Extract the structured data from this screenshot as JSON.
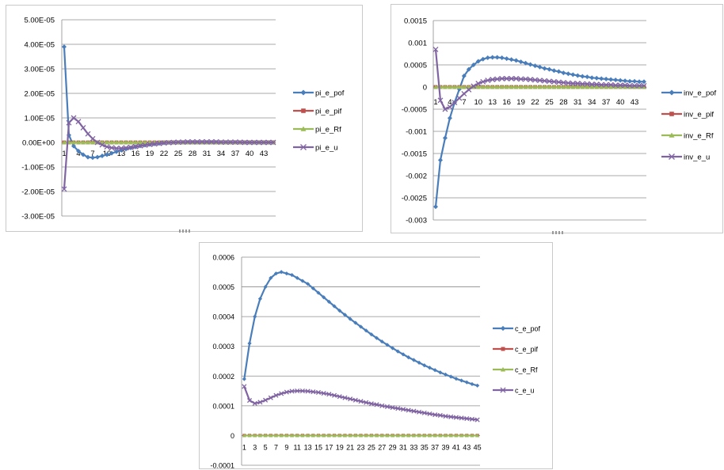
{
  "colors": {
    "pof": "#4a7ebb",
    "pif": "#c0504d",
    "rf": "#9bbb59",
    "u": "#8064a2",
    "grid": "#8c8c8c",
    "border": "#c9c9c9"
  },
  "chart_data": [
    {
      "id": "pi",
      "type": "line",
      "title": "",
      "x": [
        1,
        2,
        3,
        4,
        5,
        6,
        7,
        8,
        9,
        10,
        11,
        12,
        13,
        14,
        15,
        16,
        17,
        18,
        19,
        20,
        21,
        22,
        23,
        24,
        25,
        26,
        27,
        28,
        29,
        30,
        31,
        32,
        33,
        34,
        35,
        36,
        37,
        38,
        39,
        40,
        41,
        42,
        43,
        44,
        45
      ],
      "x_tick_labels": [
        "1",
        "4",
        "7",
        "10",
        "13",
        "16",
        "19",
        "22",
        "25",
        "28",
        "31",
        "34",
        "37",
        "40",
        "43"
      ],
      "y_tick_labels": [
        "5.00E-05",
        "4.00E-05",
        "3.00E-05",
        "2.00E-05",
        "1.00E-05",
        "0.00E+00",
        "-1.00E-05",
        "-2.00E-05",
        "-3.00E-05"
      ],
      "ylim": [
        -3e-05,
        5e-05
      ],
      "legend": [
        "pi_e_pof",
        "pi_e_pif",
        "pi_e_Rf",
        "pi_e_u"
      ],
      "legend_position": "right",
      "series": [
        {
          "name": "pi_e_pof",
          "values": [
            3.9e-05,
            3e-06,
            -1.5e-06,
            -3.5e-06,
            -5e-06,
            -6e-06,
            -6.2e-06,
            -6e-06,
            -5.5e-06,
            -5e-06,
            -4.4e-06,
            -3.8e-06,
            -3.2e-06,
            -2.7e-06,
            -2.2e-06,
            -1.8e-06,
            -1.4e-06,
            -1.1e-06,
            -8e-07,
            -6e-07,
            -4e-07,
            -2e-07,
            -1e-07,
            0,
            0,
            1e-07,
            1e-07,
            1e-07,
            1e-07,
            1e-07,
            1e-07,
            1e-07,
            1e-07,
            1e-07,
            1e-07,
            1e-07,
            1e-07,
            0,
            0,
            0,
            0,
            0,
            0,
            0,
            0
          ]
        },
        {
          "name": "pi_e_pif",
          "values": [
            0,
            0,
            0,
            0,
            0,
            0,
            0,
            0,
            0,
            0,
            0,
            0,
            0,
            0,
            0,
            0,
            0,
            0,
            0,
            0,
            0,
            0,
            0,
            0,
            0,
            0,
            0,
            0,
            0,
            0,
            0,
            0,
            0,
            0,
            0,
            0,
            0,
            0,
            0,
            0,
            0,
            0,
            0,
            0,
            0
          ]
        },
        {
          "name": "pi_e_Rf",
          "values": [
            0,
            0,
            0,
            0,
            0,
            0,
            0,
            0,
            0,
            0,
            0,
            0,
            0,
            0,
            0,
            0,
            0,
            0,
            0,
            0,
            0,
            0,
            0,
            0,
            0,
            0,
            0,
            0,
            0,
            0,
            0,
            0,
            0,
            0,
            0,
            0,
            0,
            0,
            0,
            0,
            0,
            0,
            0,
            0,
            0
          ]
        },
        {
          "name": "pi_e_u",
          "values": [
            -1.9e-05,
            8e-06,
            1e-05,
            8.5e-06,
            6e-06,
            3.5e-06,
            1.5e-06,
            0,
            -1e-06,
            -1.8e-06,
            -2.2e-06,
            -2.4e-06,
            -2.4e-06,
            -2.2e-06,
            -2e-06,
            -1.7e-06,
            -1.4e-06,
            -1.1e-06,
            -8e-07,
            -6e-07,
            -4e-07,
            -2e-07,
            -1e-07,
            0,
            1e-07,
            1e-07,
            2e-07,
            2e-07,
            2e-07,
            2e-07,
            2e-07,
            2e-07,
            2e-07,
            1e-07,
            1e-07,
            1e-07,
            1e-07,
            1e-07,
            0,
            0,
            0,
            0,
            0,
            0,
            0
          ]
        }
      ]
    },
    {
      "id": "inv",
      "type": "line",
      "title": "",
      "x": [
        1,
        2,
        3,
        4,
        5,
        6,
        7,
        8,
        9,
        10,
        11,
        12,
        13,
        14,
        15,
        16,
        17,
        18,
        19,
        20,
        21,
        22,
        23,
        24,
        25,
        26,
        27,
        28,
        29,
        30,
        31,
        32,
        33,
        34,
        35,
        36,
        37,
        38,
        39,
        40,
        41,
        42,
        43,
        44,
        45
      ],
      "x_tick_labels": [
        "1",
        "4",
        "7",
        "10",
        "13",
        "16",
        "19",
        "22",
        "25",
        "28",
        "31",
        "34",
        "37",
        "40",
        "43"
      ],
      "y_tick_labels": [
        "0.0015",
        "0.001",
        "0.0005",
        "0",
        "-0.0005",
        "-0.001",
        "-0.0015",
        "-0.002",
        "-0.0025",
        "-0.003"
      ],
      "ylim": [
        -0.003,
        0.0015
      ],
      "legend": [
        "inv_e_pof",
        "inv_e_pif",
        "inv_e_Rf",
        "inv_e_u"
      ],
      "legend_position": "right",
      "series": [
        {
          "name": "inv_e_pof",
          "values": [
            -0.0027,
            -0.00165,
            -0.00115,
            -0.0007,
            -0.00035,
            -5e-05,
            0.00025,
            0.0004,
            0.0005,
            0.00058,
            0.00063,
            0.00066,
            0.00067,
            0.00067,
            0.00066,
            0.00064,
            0.00062,
            0.0006,
            0.00057,
            0.00054,
            0.00051,
            0.00048,
            0.00045,
            0.00042,
            0.0004,
            0.00037,
            0.00035,
            0.00032,
            0.0003,
            0.00028,
            0.00026,
            0.00024,
            0.00023,
            0.00021,
            0.0002,
            0.00019,
            0.00018,
            0.00017,
            0.00016,
            0.00015,
            0.00014,
            0.00013,
            0.00013,
            0.00012,
            0.00012
          ]
        },
        {
          "name": "inv_e_pif",
          "values": [
            0,
            0,
            0,
            0,
            0,
            0,
            0,
            0,
            0,
            0,
            0,
            0,
            0,
            0,
            0,
            0,
            0,
            0,
            0,
            0,
            0,
            0,
            0,
            0,
            0,
            0,
            0,
            0,
            0,
            0,
            0,
            0,
            0,
            0,
            0,
            0,
            0,
            0,
            0,
            0,
            0,
            0,
            0,
            0,
            0
          ]
        },
        {
          "name": "inv_e_Rf",
          "values": [
            0,
            0,
            0,
            0,
            0,
            0,
            0,
            0,
            0,
            0,
            0,
            0,
            0,
            0,
            0,
            0,
            0,
            0,
            0,
            0,
            0,
            0,
            0,
            0,
            0,
            0,
            0,
            0,
            0,
            0,
            0,
            0,
            0,
            0,
            0,
            0,
            0,
            0,
            0,
            0,
            0,
            0,
            0,
            0,
            0
          ]
        },
        {
          "name": "inv_e_u",
          "values": [
            0.00085,
            -0.0003,
            -0.0005,
            -0.00045,
            -0.00035,
            -0.00025,
            -0.00015,
            -6e-05,
            2e-05,
            8e-05,
            0.00012,
            0.00015,
            0.00017,
            0.00018,
            0.00019,
            0.00019,
            0.00019,
            0.00019,
            0.00018,
            0.00018,
            0.00017,
            0.00016,
            0.00015,
            0.00014,
            0.00013,
            0.00012,
            0.00011,
            0.0001,
            9e-05,
            8e-05,
            8e-05,
            7e-05,
            7e-05,
            6e-05,
            6e-05,
            5e-05,
            5e-05,
            5e-05,
            4e-05,
            4e-05,
            4e-05,
            3e-05,
            3e-05,
            3e-05,
            3e-05
          ]
        }
      ]
    },
    {
      "id": "c",
      "type": "line",
      "title": "",
      "x": [
        1,
        2,
        3,
        4,
        5,
        6,
        7,
        8,
        9,
        10,
        11,
        12,
        13,
        14,
        15,
        16,
        17,
        18,
        19,
        20,
        21,
        22,
        23,
        24,
        25,
        26,
        27,
        28,
        29,
        30,
        31,
        32,
        33,
        34,
        35,
        36,
        37,
        38,
        39,
        40,
        41,
        42,
        43,
        44,
        45
      ],
      "x_tick_labels": [
        "1",
        "3",
        "5",
        "7",
        "9",
        "11",
        "13",
        "15",
        "17",
        "19",
        "21",
        "23",
        "25",
        "27",
        "29",
        "31",
        "33",
        "35",
        "37",
        "39",
        "41",
        "43",
        "45"
      ],
      "y_tick_labels": [
        "0.0006",
        "0.0005",
        "0.0004",
        "0.0003",
        "0.0002",
        "0.0001",
        "0",
        "-0.0001"
      ],
      "ylim": [
        -0.0001,
        0.0006
      ],
      "legend": [
        "c_e_pof",
        "c_e_pif",
        "c_e_Rf",
        "c_e_u"
      ],
      "legend_position": "right",
      "series": [
        {
          "name": "c_e_pof",
          "values": [
            0.00019,
            0.00031,
            0.0004,
            0.00046,
            0.0005,
            0.00053,
            0.000545,
            0.00055,
            0.000545,
            0.00054,
            0.00053,
            0.00052,
            0.00051,
            0.000495,
            0.00048,
            0.000465,
            0.00045,
            0.000435,
            0.00042,
            0.000406,
            0.000392,
            0.000379,
            0.000366,
            0.000353,
            0.00034,
            0.000328,
            0.000316,
            0.000305,
            0.000294,
            0.000283,
            0.000273,
            0.000263,
            0.000254,
            0.000245,
            0.000236,
            0.000228,
            0.00022,
            0.000212,
            0.000205,
            0.000198,
            0.000191,
            0.000185,
            0.000179,
            0.000173,
            0.000168
          ]
        },
        {
          "name": "c_e_pif",
          "values": [
            0,
            0,
            0,
            0,
            0,
            0,
            0,
            0,
            0,
            0,
            0,
            0,
            0,
            0,
            0,
            0,
            0,
            0,
            0,
            0,
            0,
            0,
            0,
            0,
            0,
            0,
            0,
            0,
            0,
            0,
            0,
            0,
            0,
            0,
            0,
            0,
            0,
            0,
            0,
            0,
            0,
            0,
            0,
            0,
            0
          ]
        },
        {
          "name": "c_e_Rf",
          "values": [
            0,
            0,
            0,
            0,
            0,
            0,
            0,
            0,
            0,
            0,
            0,
            0,
            0,
            0,
            0,
            0,
            0,
            0,
            0,
            0,
            0,
            0,
            0,
            0,
            0,
            0,
            0,
            0,
            0,
            0,
            0,
            0,
            0,
            0,
            0,
            0,
            0,
            0,
            0,
            0,
            0,
            0,
            0,
            0,
            0
          ]
        },
        {
          "name": "c_e_u",
          "values": [
            0.000165,
            0.000118,
            0.000108,
            0.000112,
            0.000119,
            0.000127,
            0.000135,
            0.000141,
            0.000146,
            0.000149,
            0.00015,
            0.00015,
            0.000149,
            0.000147,
            0.000145,
            0.000142,
            0.000139,
            0.000135,
            0.000131,
            0.000127,
            0.000123,
            0.000119,
            0.000115,
            0.000111,
            0.000107,
            0.000104,
            0.0001,
            9.7e-05,
            9.4e-05,
            9.1e-05,
            8.8e-05,
            8.5e-05,
            8.2e-05,
            7.9e-05,
            7.6e-05,
            7.3e-05,
            7e-05,
            6.8e-05,
            6.5e-05,
            6.3e-05,
            6.1e-05,
            5.9e-05,
            5.7e-05,
            5.5e-05,
            5.3e-05
          ]
        }
      ]
    }
  ]
}
